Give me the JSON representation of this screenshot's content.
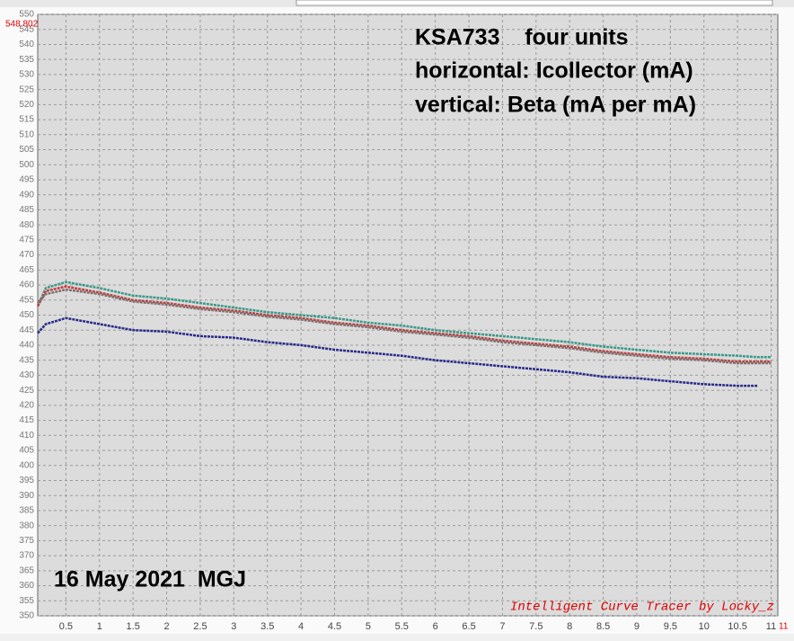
{
  "chart_data": {
    "type": "line",
    "annotations": [
      "KSA733    four units",
      "horizontal: Icollector (mA)",
      "vertical: Beta (mA per mA)",
      "16 May 2021  MGJ",
      "Intelligent Curve Tracer by Locky_z"
    ],
    "y_end_label": 548.802,
    "x_end_label": 11,
    "x": [
      0.08,
      0.2,
      0.5,
      1,
      1.5,
      2,
      2.5,
      3,
      3.5,
      4,
      4.5,
      5,
      5.5,
      6,
      6.5,
      7,
      7.5,
      8,
      8.5,
      9,
      9.5,
      10,
      10.5,
      10.8,
      11
    ],
    "series": [
      {
        "color": "#3a9a8a",
        "values": [
          453,
          459,
          461,
          459,
          456.5,
          455.5,
          454,
          452.5,
          451,
          450,
          449,
          447.5,
          446.5,
          445,
          444,
          443,
          442,
          441,
          439.5,
          438.5,
          437.5,
          437,
          436.5,
          436,
          436
        ]
      },
      {
        "color": "#c04040",
        "values": [
          453,
          458,
          459.5,
          457.5,
          455,
          454,
          452.5,
          451.5,
          450,
          449,
          447.5,
          446.5,
          445,
          444,
          443,
          441.5,
          440.5,
          439.5,
          438,
          437,
          436,
          435.5,
          434.5,
          434.5,
          434.5
        ]
      },
      {
        "color": "#807070",
        "values": [
          454,
          457,
          458.5,
          457,
          454.5,
          453.5,
          452,
          451,
          449.5,
          448.5,
          447,
          446,
          444.5,
          443.5,
          442.5,
          441,
          440,
          439,
          437.5,
          436.5,
          435.5,
          435,
          434,
          434,
          434
        ]
      },
      {
        "color": "#2a2a8a",
        "values": [
          444,
          447,
          449,
          447,
          445,
          444.5,
          443,
          442.5,
          441,
          440,
          438.5,
          437.5,
          436.5,
          435,
          434,
          433,
          432,
          431,
          429.5,
          429,
          428,
          427,
          426.5,
          426.5,
          null
        ]
      }
    ],
    "xlim": [
      0.08,
      11.1
    ],
    "ylim": [
      350,
      550
    ],
    "xticks": [
      0.5,
      1,
      1.5,
      2,
      2.5,
      3,
      3.5,
      4,
      4.5,
      5,
      5.5,
      6,
      6.5,
      7,
      7.5,
      8,
      8.5,
      9,
      9.5,
      10,
      10.5,
      11
    ],
    "yticks": [
      350,
      355,
      360,
      365,
      370,
      375,
      380,
      385,
      390,
      395,
      400,
      405,
      410,
      415,
      420,
      425,
      430,
      435,
      440,
      445,
      450,
      455,
      460,
      465,
      470,
      475,
      480,
      485,
      490,
      495,
      500,
      505,
      510,
      515,
      520,
      525,
      530,
      535,
      540,
      545,
      550
    ],
    "grid": true
  }
}
